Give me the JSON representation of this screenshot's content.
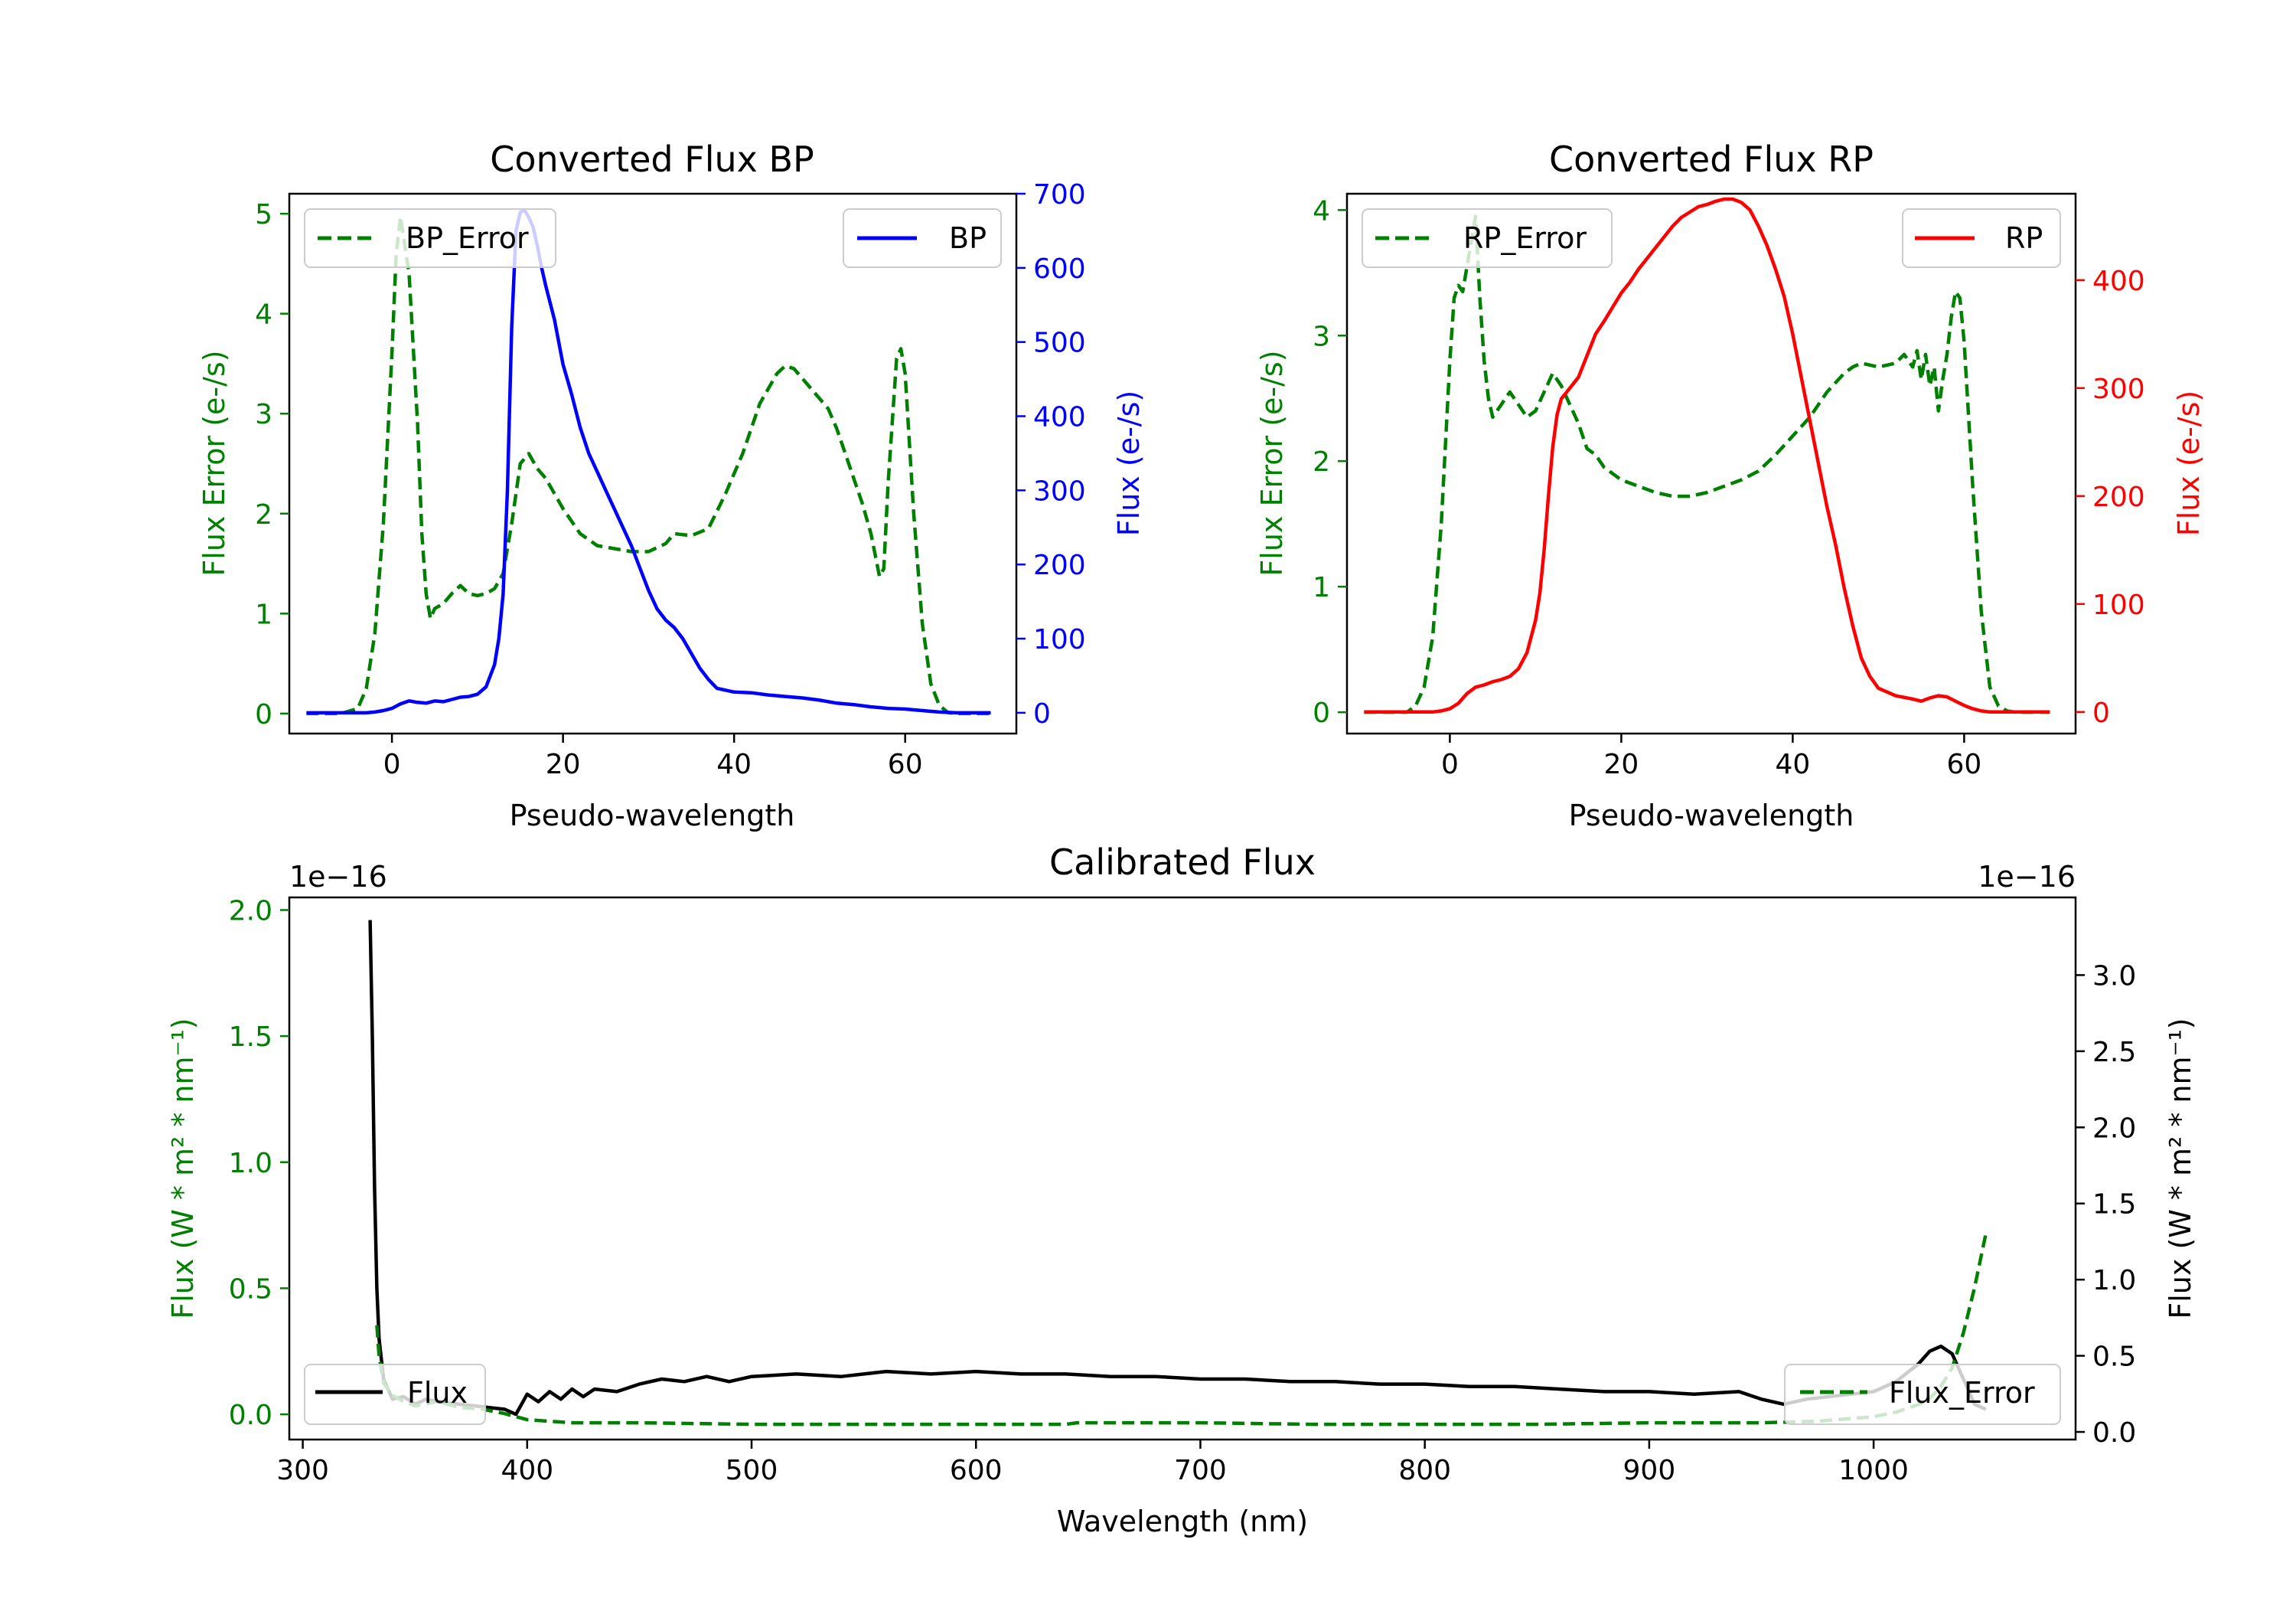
{
  "colors": {
    "error": "#008000",
    "bp": "#0000ff",
    "rp": "#ff0000",
    "flux": "#000000",
    "frame": "#000000",
    "text": "#000000",
    "legend_border": "#cccccc"
  },
  "chart_data": [
    {
      "id": "bp",
      "type": "line",
      "title": "Converted Flux BP",
      "xlabel": "Pseudo-wavelength",
      "ylabel_left": "Flux Error (e-/s)",
      "ylabel_right": "Flux (e-/s)",
      "xlim": [
        -12,
        73
      ],
      "ylim_left": [
        -0.2,
        5.2
      ],
      "ylim_right": [
        -28,
        700
      ],
      "xticks": [
        0,
        20,
        40,
        60
      ],
      "xtick_labels": [
        "0",
        "20",
        "40",
        "60"
      ],
      "yticks_left": [
        0,
        1,
        2,
        3,
        4,
        5
      ],
      "ytick_labels_left": [
        "0",
        "1",
        "2",
        "3",
        "4",
        "5"
      ],
      "yticks_right": [
        0,
        100,
        200,
        300,
        400,
        500,
        600,
        700
      ],
      "ytick_labels_right": [
        "0",
        "100",
        "200",
        "300",
        "400",
        "500",
        "600",
        "700"
      ],
      "legend_left": "BP_Error",
      "legend_right": "BP",
      "series": [
        {
          "name": "BP_Error",
          "axis": "left",
          "style": "dashed",
          "color_key": "error",
          "x": [
            -10,
            -6,
            -4,
            -3,
            -2,
            -1,
            0,
            0.5,
            1,
            2,
            3,
            3.5,
            4,
            4.5,
            5,
            6,
            7,
            8,
            9,
            10,
            11,
            12,
            13,
            14,
            15,
            16,
            17,
            18,
            20,
            22,
            24,
            26,
            28,
            30,
            32,
            33,
            35,
            37,
            39,
            41,
            43,
            45,
            46,
            47,
            48,
            50,
            51,
            52,
            53,
            54,
            55,
            56,
            57,
            57.5,
            58,
            59,
            59.5,
            60,
            61,
            62,
            63,
            64,
            65,
            66,
            68,
            70
          ],
          "y": [
            0,
            0,
            0.05,
            0.25,
            0.8,
            1.9,
            3.6,
            4.6,
            4.97,
            4.4,
            2.9,
            1.8,
            1.2,
            0.95,
            1.05,
            1.1,
            1.2,
            1.28,
            1.2,
            1.18,
            1.2,
            1.25,
            1.4,
            1.9,
            2.5,
            2.6,
            2.45,
            2.35,
            2.05,
            1.8,
            1.68,
            1.65,
            1.62,
            1.62,
            1.7,
            1.8,
            1.78,
            1.85,
            2.2,
            2.6,
            3.1,
            3.4,
            3.48,
            3.45,
            3.35,
            3.15,
            3.05,
            2.85,
            2.6,
            2.35,
            2.1,
            1.8,
            1.37,
            1.45,
            2.3,
            3.55,
            3.65,
            3.4,
            2.0,
            0.9,
            0.3,
            0.08,
            0.01,
            0,
            0,
            0
          ]
        },
        {
          "name": "BP",
          "axis": "right",
          "style": "solid",
          "color_key": "bp",
          "x": [
            -10,
            -6,
            -4,
            -3,
            -2,
            -1,
            0,
            1,
            2,
            3,
            4,
            5,
            6,
            7,
            8,
            9,
            10,
            11,
            12,
            12.5,
            13,
            13.5,
            14,
            14.5,
            15,
            15.5,
            16,
            16.5,
            17,
            17.5,
            18,
            19,
            20,
            21,
            22,
            23,
            24,
            25,
            26,
            27,
            28,
            29,
            30,
            31,
            32,
            33,
            34,
            35,
            36,
            37,
            38,
            40,
            42,
            44,
            46,
            48,
            50,
            52,
            54,
            56,
            58,
            60,
            62,
            64,
            66,
            68,
            70
          ],
          "y": [
            0,
            0,
            0,
            0,
            1,
            3,
            6,
            12,
            16,
            14,
            13,
            16,
            15,
            18,
            21,
            22,
            25,
            35,
            65,
            100,
            160,
            300,
            520,
            650,
            675,
            678,
            668,
            655,
            630,
            600,
            575,
            530,
            470,
            430,
            385,
            350,
            325,
            300,
            275,
            250,
            225,
            195,
            165,
            140,
            125,
            115,
            100,
            80,
            60,
            45,
            33,
            28,
            27,
            24,
            22,
            20,
            17,
            13,
            11,
            8,
            6,
            5,
            3,
            1,
            0,
            0,
            0
          ]
        }
      ]
    },
    {
      "id": "rp",
      "type": "line",
      "title": "Converted Flux RP",
      "xlabel": "Pseudo-wavelength",
      "ylabel_left": "Flux Error (e-/s)",
      "ylabel_right": "Flux (e-/s)",
      "xlim": [
        -12,
        73
      ],
      "ylim_left": [
        -0.17,
        4.13
      ],
      "ylim_right": [
        -20,
        480
      ],
      "xticks": [
        0,
        20,
        40,
        60
      ],
      "xtick_labels": [
        "0",
        "20",
        "40",
        "60"
      ],
      "yticks_left": [
        0,
        1,
        2,
        3,
        4
      ],
      "ytick_labels_left": [
        "0",
        "1",
        "2",
        "3",
        "4"
      ],
      "yticks_right": [
        0,
        100,
        200,
        300,
        400
      ],
      "ytick_labels_right": [
        "0",
        "100",
        "200",
        "300",
        "400"
      ],
      "legend_left": "RP_Error",
      "legend_right": "RP",
      "series": [
        {
          "name": "RP_Error",
          "axis": "left",
          "style": "dashed",
          "color_key": "error",
          "x": [
            -10,
            -5,
            -4,
            -3,
            -2,
            -1,
            0,
            0.5,
            1,
            1.5,
            2,
            2.5,
            3,
            3.5,
            4,
            4.5,
            5,
            6,
            7,
            8,
            9,
            10,
            11,
            12,
            13,
            14,
            15,
            16,
            17,
            18,
            20,
            22,
            24,
            26,
            28,
            30,
            32,
            34,
            36,
            38,
            40,
            42,
            44,
            46,
            47,
            48,
            50,
            52,
            53,
            54,
            54.5,
            55,
            55.5,
            56,
            56.5,
            57,
            57.5,
            58,
            58.5,
            59,
            59.5,
            60,
            61,
            62,
            63,
            64,
            65,
            66,
            70
          ],
          "y": [
            0,
            0,
            0.05,
            0.2,
            0.6,
            1.5,
            2.8,
            3.3,
            3.4,
            3.35,
            3.55,
            3.75,
            3.95,
            3.3,
            2.8,
            2.5,
            2.35,
            2.45,
            2.55,
            2.45,
            2.35,
            2.4,
            2.55,
            2.7,
            2.6,
            2.45,
            2.3,
            2.1,
            2.05,
            1.95,
            1.85,
            1.8,
            1.75,
            1.72,
            1.72,
            1.75,
            1.8,
            1.85,
            1.92,
            2.05,
            2.2,
            2.35,
            2.55,
            2.7,
            2.75,
            2.78,
            2.75,
            2.78,
            2.85,
            2.75,
            2.88,
            2.65,
            2.85,
            2.6,
            2.75,
            2.4,
            2.65,
            2.85,
            3.15,
            3.35,
            3.3,
            2.95,
            1.8,
            0.8,
            0.2,
            0.05,
            0.01,
            0,
            0
          ]
        },
        {
          "name": "RP",
          "axis": "right",
          "style": "solid",
          "color_key": "rp",
          "x": [
            -10,
            -4,
            -3,
            -2,
            -1,
            0,
            1,
            2,
            3,
            4,
            5,
            6,
            7,
            8,
            9,
            10,
            10.5,
            11,
            11.5,
            12,
            12.5,
            13,
            13.5,
            14,
            15,
            16,
            17,
            18,
            19,
            20,
            21,
            22,
            23,
            24,
            25,
            26,
            27,
            28,
            29,
            30,
            31,
            32,
            33,
            34,
            35,
            36,
            37,
            38,
            39,
            40,
            41,
            42,
            43,
            44,
            45,
            46,
            47,
            48,
            49,
            50,
            52,
            54,
            55,
            56,
            57,
            58,
            59,
            60,
            61,
            62,
            63,
            64,
            66,
            68,
            70
          ],
          "y": [
            0,
            0,
            0,
            0,
            1,
            3,
            8,
            17,
            23,
            25,
            28,
            30,
            33,
            40,
            55,
            85,
            110,
            150,
            200,
            245,
            275,
            290,
            295,
            300,
            310,
            330,
            350,
            362,
            375,
            388,
            398,
            410,
            420,
            430,
            440,
            450,
            458,
            463,
            468,
            470,
            473,
            475,
            475,
            472,
            465,
            450,
            432,
            410,
            385,
            350,
            310,
            270,
            230,
            190,
            155,
            115,
            80,
            50,
            33,
            22,
            15,
            12,
            10,
            13,
            15,
            14,
            10,
            6,
            3,
            1,
            0,
            0,
            0,
            0,
            0
          ]
        }
      ]
    },
    {
      "id": "cal",
      "type": "line",
      "title": "Calibrated Flux",
      "xlabel": "Wavelength (nm)",
      "ylabel_left": "Flux (W * m² * nm⁻¹)",
      "ylabel_right": "Flux (W * m² * nm⁻¹)",
      "offset_left": "1e−16",
      "offset_right": "1e−16",
      "xlim": [
        294,
        1090
      ],
      "ylim_left": [
        -0.1,
        2.05
      ],
      "ylim_right": [
        -0.05,
        3.51
      ],
      "xticks": [
        300,
        400,
        500,
        600,
        700,
        800,
        900,
        1000
      ],
      "xtick_labels": [
        "300",
        "400",
        "500",
        "600",
        "700",
        "800",
        "900",
        "1000"
      ],
      "yticks_left": [
        0,
        0.5,
        1,
        1.5,
        2
      ],
      "ytick_labels_left": [
        "0.0",
        "0.5",
        "1.0",
        "1.5",
        "2.0"
      ],
      "yticks_right": [
        0,
        0.5,
        1,
        1.5,
        2,
        2.5,
        3
      ],
      "ytick_labels_right": [
        "0.0",
        "0.5",
        "1.0",
        "1.5",
        "2.0",
        "2.5",
        "3.0"
      ],
      "legend_left": "Flux",
      "legend_right": "Flux_Error",
      "series": [
        {
          "name": "Flux",
          "axis": "left",
          "style": "solid",
          "color_key": "flux",
          "x": [
            330,
            331,
            332,
            333,
            334,
            336,
            340,
            345,
            350,
            355,
            360,
            370,
            380,
            390,
            395,
            400,
            405,
            410,
            415,
            420,
            425,
            430,
            440,
            450,
            460,
            470,
            480,
            490,
            500,
            520,
            540,
            560,
            580,
            600,
            620,
            640,
            660,
            680,
            700,
            720,
            740,
            760,
            780,
            800,
            820,
            840,
            860,
            880,
            900,
            920,
            940,
            950,
            960,
            970,
            980,
            990,
            1000,
            1010,
            1020,
            1025,
            1030,
            1035,
            1040,
            1045,
            1050
          ],
          "y": [
            1.96,
            1.5,
            0.9,
            0.5,
            0.3,
            0.14,
            0.06,
            0.07,
            0.04,
            0.06,
            0.05,
            0.04,
            0.03,
            0.02,
            0.0,
            0.08,
            0.05,
            0.09,
            0.06,
            0.1,
            0.07,
            0.1,
            0.09,
            0.12,
            0.14,
            0.13,
            0.15,
            0.13,
            0.15,
            0.16,
            0.15,
            0.17,
            0.16,
            0.17,
            0.16,
            0.16,
            0.15,
            0.15,
            0.14,
            0.14,
            0.13,
            0.13,
            0.12,
            0.12,
            0.11,
            0.11,
            0.1,
            0.09,
            0.09,
            0.08,
            0.09,
            0.06,
            0.04,
            0.06,
            0.07,
            0.08,
            0.09,
            0.13,
            0.2,
            0.25,
            0.27,
            0.24,
            0.14,
            0.04,
            0.02
          ]
        },
        {
          "name": "Flux_Error",
          "axis": "right",
          "style": "dashed",
          "color_key": "error",
          "x": [
            333,
            334,
            336,
            340,
            345,
            350,
            360,
            370,
            380,
            390,
            400,
            420,
            450,
            500,
            550,
            600,
            640,
            645,
            700,
            750,
            800,
            850,
            900,
            950,
            975,
            1000,
            1010,
            1020,
            1025,
            1030,
            1035,
            1040,
            1045,
            1050
          ],
          "y": [
            0.7,
            0.5,
            0.32,
            0.24,
            0.2,
            0.17,
            0.2,
            0.16,
            0.15,
            0.12,
            0.08,
            0.06,
            0.06,
            0.05,
            0.05,
            0.05,
            0.05,
            0.06,
            0.06,
            0.05,
            0.05,
            0.05,
            0.06,
            0.06,
            0.07,
            0.1,
            0.13,
            0.18,
            0.22,
            0.3,
            0.42,
            0.65,
            0.95,
            1.3
          ]
        }
      ]
    }
  ]
}
